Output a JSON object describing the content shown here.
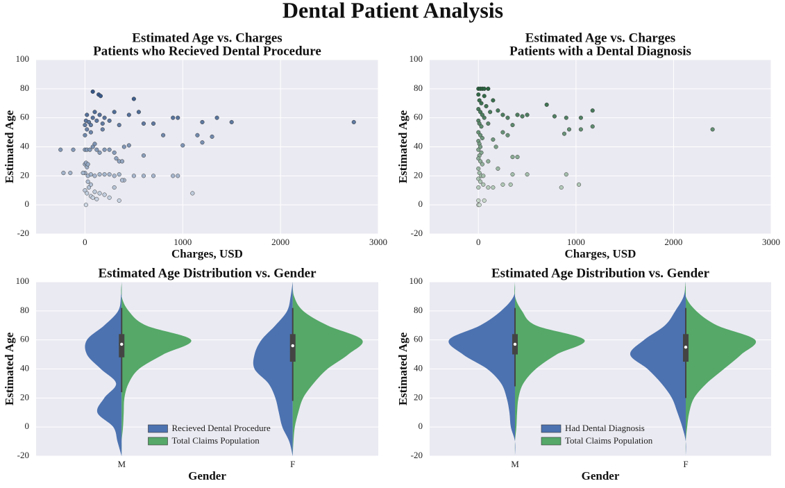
{
  "title": "Dental Patient Analysis",
  "chart_data": [
    {
      "type": "scatter",
      "title": "Estimated Age vs. Charges",
      "subtitle": "Patients who Recieved Dental Procedure",
      "xlabel": "Charges, USD",
      "ylabel": "Estimated Age",
      "x": [
        -250,
        -120,
        -220,
        -150,
        0,
        -20,
        30,
        60,
        100,
        150,
        200,
        250,
        300,
        350,
        400,
        380,
        500,
        600,
        700,
        900,
        950,
        1100,
        0,
        10,
        20,
        30,
        0,
        20,
        50,
        80,
        100,
        120,
        150,
        200,
        250,
        300,
        320,
        350,
        380,
        400,
        450,
        600,
        0,
        20,
        40,
        60,
        80,
        100,
        120,
        150,
        200,
        250,
        300,
        350,
        30,
        60,
        10,
        0,
        10,
        20,
        40,
        60,
        80,
        100,
        120,
        150,
        180,
        200,
        250,
        300,
        350,
        450,
        550,
        600,
        700,
        800,
        900,
        950,
        1000,
        1150,
        1200,
        1200,
        1300,
        1350,
        1500,
        2750,
        80,
        140,
        160,
        500,
        0,
        20,
        60,
        180
      ],
      "values": [
        38,
        38,
        22,
        22,
        22,
        22,
        20,
        21,
        20,
        21,
        21,
        21,
        20,
        21,
        17,
        17,
        20,
        20,
        20,
        20,
        20,
        8,
        28,
        29,
        26,
        28,
        38,
        38,
        38,
        40,
        42,
        38,
        36,
        38,
        38,
        36,
        32,
        30,
        30,
        40,
        41,
        34,
        10,
        8,
        12,
        6,
        5,
        9,
        4,
        8,
        7,
        5,
        12,
        3,
        16,
        14,
        0,
        55,
        58,
        62,
        57,
        55,
        60,
        64,
        58,
        62,
        56,
        60,
        58,
        64,
        55,
        62,
        64,
        56,
        56,
        48,
        60,
        60,
        41,
        48,
        57,
        43,
        47,
        60,
        57,
        57,
        78,
        76,
        75,
        73,
        48,
        52,
        50,
        52
      ],
      "cmap": [
        "#f7fbff",
        "#08306b"
      ],
      "xlim": [
        -500,
        3000
      ],
      "xticks": [
        0,
        1000,
        2000,
        3000
      ],
      "ylim": [
        -20,
        100
      ],
      "yticks": [
        -20,
        0,
        20,
        40,
        60,
        80,
        100
      ],
      "grid": true
    },
    {
      "type": "scatter",
      "title": "Estimated Age vs. Charges",
      "subtitle": "Patients with a Dental Diagnosis",
      "xlabel": "Charges, USD",
      "ylabel": "Estimated Age",
      "x": [
        0,
        20,
        40,
        60,
        100,
        0,
        10,
        30,
        0,
        20,
        40,
        60,
        0,
        10,
        30,
        0,
        20,
        40,
        0,
        10,
        20,
        0,
        30,
        10,
        0,
        20,
        40,
        0,
        10,
        30,
        0,
        20,
        0,
        50,
        100,
        150,
        0,
        0,
        10,
        60,
        150,
        200,
        250,
        300,
        350,
        400,
        450,
        500,
        250,
        300,
        150,
        200,
        400,
        350,
        500,
        330,
        250,
        700,
        780,
        900,
        880,
        930,
        1050,
        1050,
        1170,
        1170,
        2400,
        850,
        1030,
        900,
        350,
        100,
        120,
        80,
        60,
        180,
        100,
        50
      ],
      "values": [
        80,
        80,
        80,
        80,
        80,
        76,
        72,
        70,
        66,
        64,
        62,
        60,
        58,
        56,
        54,
        50,
        48,
        46,
        44,
        42,
        40,
        38,
        36,
        34,
        32,
        30,
        28,
        25,
        22,
        20,
        18,
        16,
        12,
        14,
        12,
        12,
        3,
        0,
        0,
        3,
        72,
        65,
        62,
        60,
        55,
        62,
        61,
        62,
        50,
        48,
        45,
        25,
        33,
        33,
        21,
        14,
        14,
        69,
        61,
        60,
        49,
        52,
        52,
        60,
        65,
        54,
        52,
        12,
        14,
        21,
        21,
        56,
        64,
        68,
        75,
        40,
        30,
        20
      ],
      "cmap": [
        "#f7fcf5",
        "#00441b"
      ],
      "xlim": [
        -500,
        3000
      ],
      "xticks": [
        0,
        1000,
        2000,
        3000
      ],
      "ylim": [
        -20,
        100
      ],
      "yticks": [
        -20,
        0,
        20,
        40,
        60,
        80,
        100
      ],
      "grid": true
    },
    {
      "type": "violin",
      "title": "Estimated Age Distribution vs. Gender",
      "xlabel": "Gender",
      "ylabel": "Estimated Age",
      "categories": [
        "M",
        "F"
      ],
      "levels": [
        -20,
        -10,
        0,
        10,
        20,
        30,
        40,
        50,
        60,
        70,
        80,
        90,
        100
      ],
      "series": [
        {
          "name": "Recieved Dental Procedure",
          "color": "#4c72b0",
          "side": "left",
          "density": [
            [
              0,
              0.06,
              0.12,
              0.35,
              0.25,
              0.08,
              0.3,
              0.5,
              0.5,
              0.25,
              0.05,
              0.01,
              0
            ],
            [
              0,
              0.05,
              0.15,
              0.2,
              0.25,
              0.35,
              0.55,
              0.55,
              0.45,
              0.25,
              0.08,
              0.03,
              0
            ]
          ]
        },
        {
          "name": "Total Claims Population",
          "color": "#55a868",
          "side": "right",
          "density": [
            [
              0,
              0,
              0.02,
              0.03,
              0.04,
              0.1,
              0.25,
              0.6,
              1.0,
              0.35,
              0.1,
              0,
              0
            ],
            [
              0,
              0.01,
              0.03,
              0.08,
              0.15,
              0.3,
              0.5,
              0.8,
              1.0,
              0.5,
              0.15,
              0.02,
              0
            ]
          ]
        }
      ],
      "box": [
        {
          "whisker_low": 24,
          "q1": 48,
          "median": 57,
          "q3": 64,
          "whisker_high": 82
        },
        {
          "whisker_low": 18,
          "q1": 45,
          "median": 56,
          "q3": 64,
          "whisker_high": 82
        }
      ],
      "ylim": [
        -20,
        100
      ],
      "yticks": [
        -20,
        0,
        20,
        40,
        60,
        80,
        100
      ],
      "grid": true,
      "legend": "lower center"
    },
    {
      "type": "violin",
      "title": "Estimated Age Distribution vs. Gender",
      "xlabel": "Gender",
      "ylabel": "Estimated Age",
      "categories": [
        "M",
        "F"
      ],
      "levels": [
        -20,
        -10,
        0,
        10,
        20,
        30,
        40,
        50,
        60,
        70,
        80,
        90,
        100
      ],
      "series": [
        {
          "name": "Had Dental Diagnosis",
          "color": "#4c72b0",
          "side": "left",
          "density": [
            [
              0,
              0,
              0.06,
              0.08,
              0.12,
              0.2,
              0.4,
              0.75,
              0.95,
              0.5,
              0.2,
              0.02,
              0
            ],
            [
              0,
              0,
              0.05,
              0.12,
              0.2,
              0.35,
              0.55,
              0.8,
              0.6,
              0.3,
              0.15,
              0.03,
              0
            ]
          ]
        },
        {
          "name": "Total Claims Population",
          "color": "#55a868",
          "side": "right",
          "density": [
            [
              0,
              0,
              0.02,
              0.03,
              0.05,
              0.12,
              0.3,
              0.6,
              1.0,
              0.3,
              0.1,
              0,
              0
            ],
            [
              0,
              0,
              0.02,
              0.05,
              0.12,
              0.3,
              0.55,
              0.8,
              1.0,
              0.45,
              0.15,
              0,
              0
            ]
          ]
        }
      ],
      "box": [
        {
          "whisker_low": 28,
          "q1": 50,
          "median": 57,
          "q3": 64,
          "whisker_high": 82
        },
        {
          "whisker_low": 20,
          "q1": 45,
          "median": 55,
          "q3": 64,
          "whisker_high": 82
        }
      ],
      "ylim": [
        -20,
        100
      ],
      "yticks": [
        -20,
        0,
        20,
        40,
        60,
        80,
        100
      ],
      "grid": true,
      "legend": "lower center"
    }
  ]
}
